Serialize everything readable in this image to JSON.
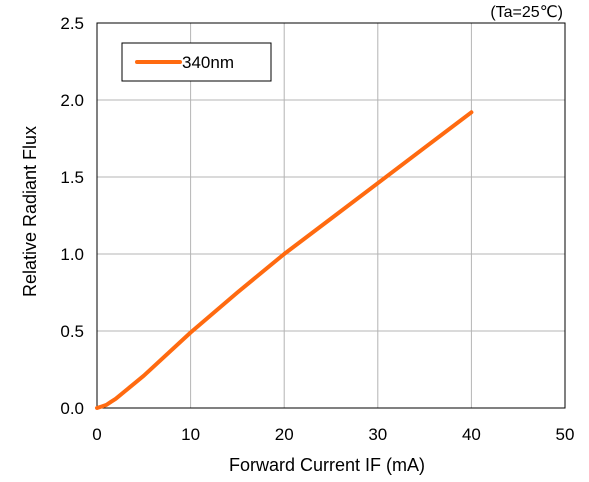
{
  "chart_data": {
    "type": "line",
    "title": "",
    "condition_label": "(Ta=25℃)",
    "xlabel": "Forward Current IF (mA)",
    "ylabel": "Relative Radiant Flux",
    "xlim": [
      0,
      50
    ],
    "ylim": [
      0,
      2.5
    ],
    "x_ticks": [
      0,
      10,
      20,
      30,
      40,
      50
    ],
    "y_ticks": [
      0.0,
      0.5,
      1.0,
      1.5,
      2.0,
      2.5
    ],
    "x_tick_labels": [
      "0",
      "10",
      "20",
      "30",
      "40",
      "50"
    ],
    "y_tick_labels": [
      "0.0",
      "0.5",
      "1.0",
      "1.5",
      "2.0",
      "2.5"
    ],
    "grid": true,
    "legend_position": "top-left",
    "series": [
      {
        "name": "340nm",
        "color": "#FF6A10",
        "x": [
          0,
          0.5,
          1,
          1.5,
          2,
          5,
          10,
          15,
          20,
          25,
          30,
          35,
          40
        ],
        "y": [
          0.0,
          0.01,
          0.02,
          0.04,
          0.06,
          0.21,
          0.49,
          0.75,
          1.0,
          1.23,
          1.46,
          1.69,
          1.92
        ]
      }
    ]
  }
}
